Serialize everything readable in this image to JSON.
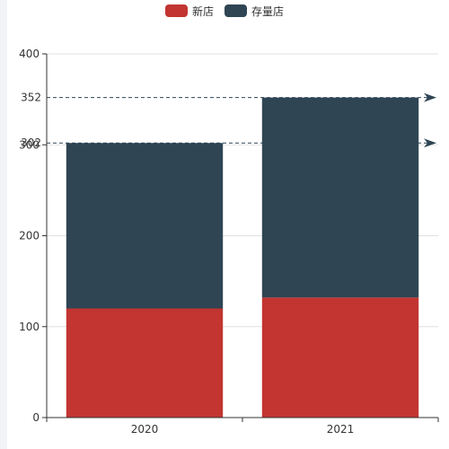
{
  "chart_data": {
    "type": "bar",
    "stacked": true,
    "categories": [
      "2020",
      "2021"
    ],
    "series": [
      {
        "name": "新店",
        "values": [
          120,
          132
        ],
        "color": "#c23531"
      },
      {
        "name": "存量店",
        "values": [
          182,
          220
        ],
        "color": "#2f4554"
      }
    ],
    "totals": [
      302,
      352
    ],
    "mark_lines": [
      {
        "value": 352,
        "label": "352",
        "style": "dashed",
        "arrow": "arrow-icon"
      },
      {
        "value": 302,
        "label": "302",
        "style": "dashed",
        "arrow": "arrow-icon"
      }
    ],
    "title": "",
    "xlabel": "",
    "ylabel": "",
    "ylim": [
      0,
      400
    ],
    "yticks": [
      0,
      100,
      200,
      300,
      400
    ],
    "grid": true,
    "legend_position": "top-center"
  }
}
